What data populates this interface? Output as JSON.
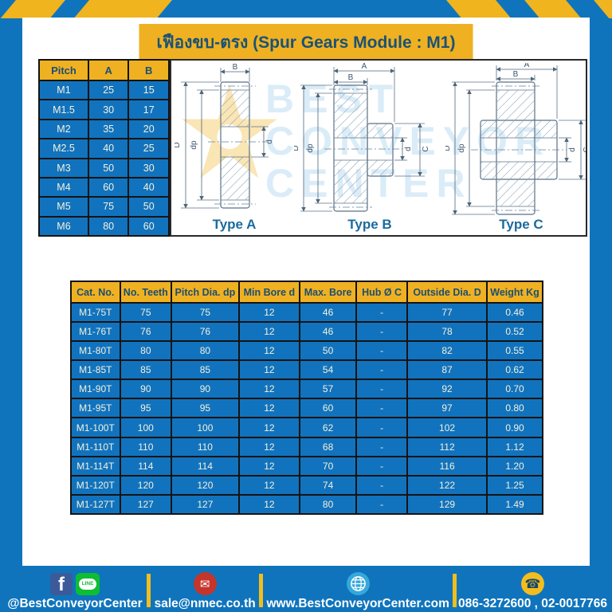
{
  "title": "เฟืองขบ-ตรง (Spur Gears Module : M1)",
  "colors": {
    "page_bg": "#0F74BC",
    "accent_yellow": "#EFB122",
    "table_blue": "#1173BE",
    "title_text": "#1A5276",
    "cell_text": "#F5F0DA"
  },
  "pitch_table": {
    "headers": [
      "Pitch",
      "A",
      "B"
    ],
    "rows": [
      [
        "M1",
        "25",
        "15"
      ],
      [
        "M1.5",
        "30",
        "17"
      ],
      [
        "M2",
        "35",
        "20"
      ],
      [
        "M2.5",
        "40",
        "25"
      ],
      [
        "M3",
        "50",
        "30"
      ],
      [
        "M4",
        "60",
        "40"
      ],
      [
        "M5",
        "75",
        "50"
      ],
      [
        "M6",
        "80",
        "60"
      ]
    ]
  },
  "diagram": {
    "watermark": {
      "line1": "BEST",
      "line2": "CONVEYOR",
      "line3": "CENTER"
    },
    "types": [
      {
        "label": "Type A",
        "dims": {
          "b": "B",
          "D": "D",
          "dp": "dp",
          "d": "d"
        }
      },
      {
        "label": "Type B",
        "dims": {
          "a": "A",
          "b": "B",
          "D": "D",
          "dp": "dp",
          "d": "d",
          "c": "C"
        }
      },
      {
        "label": "Type C",
        "dims": {
          "a": "A",
          "b": "B",
          "D": "D",
          "dp": "dp",
          "d": "d",
          "c": "C"
        }
      }
    ]
  },
  "spec_table": {
    "headers": [
      "Cat. No.",
      "No. Teeth",
      "Pitch Dia. dp",
      "Min Bore d",
      "Max. Bore",
      "Hub Ø C",
      "Outside Dia. D",
      "Weight Kg"
    ],
    "rows": [
      [
        "M1-75T",
        "75",
        "75",
        "12",
        "46",
        "-",
        "77",
        "0.46"
      ],
      [
        "M1-76T",
        "76",
        "76",
        "12",
        "46",
        "-",
        "78",
        "0.52"
      ],
      [
        "M1-80T",
        "80",
        "80",
        "12",
        "50",
        "-",
        "82",
        "0.55"
      ],
      [
        "M1-85T",
        "85",
        "85",
        "12",
        "54",
        "-",
        "87",
        "0.62"
      ],
      [
        "M1-90T",
        "90",
        "90",
        "12",
        "57",
        "-",
        "92",
        "0.70"
      ],
      [
        "M1-95T",
        "95",
        "95",
        "12",
        "60",
        "-",
        "97",
        "0.80"
      ],
      [
        "M1-100T",
        "100",
        "100",
        "12",
        "62",
        "-",
        "102",
        "0.90"
      ],
      [
        "M1-110T",
        "110",
        "110",
        "12",
        "68",
        "-",
        "112",
        "1.12"
      ],
      [
        "M1-114T",
        "114",
        "114",
        "12",
        "70",
        "-",
        "116",
        "1.20"
      ],
      [
        "M1-120T",
        "120",
        "120",
        "12",
        "74",
        "-",
        "122",
        "1.25"
      ],
      [
        "M1-127T",
        "127",
        "127",
        "12",
        "80",
        "-",
        "129",
        "1.49"
      ]
    ]
  },
  "footer": {
    "facebook_letter": "f",
    "line_label": "LINE",
    "social_handle": "@BestConveyorCenter",
    "email": "sale@nmec.co.th",
    "website": "www.BestConveyorCenter.com",
    "phones": "086-3272600 , 02-0017766"
  }
}
